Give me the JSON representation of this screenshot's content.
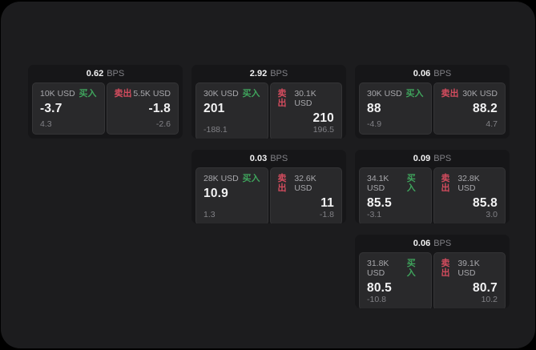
{
  "colors": {
    "page_bg": "#000000",
    "window_bg": "#1c1c1e",
    "card_bg": "#161618",
    "panel_bg": "#29292b",
    "panel_border": "#343436",
    "buy_green": "#3fa35c",
    "sell_red": "#d34c5e",
    "text_primary": "#f2f2f3",
    "text_secondary": "#a8a8ac",
    "text_muted": "#818186"
  },
  "labels": {
    "buy": "买入",
    "sell": "卖出",
    "bps_unit": "BPS"
  },
  "cards": [
    {
      "bps": "0.62",
      "row": 1,
      "col": 1,
      "buy": {
        "size": "10K USD",
        "price": "-3.7",
        "change": "4.3"
      },
      "sell": {
        "size": "5.5K USD",
        "price": "-1.8",
        "change": "-2.6"
      }
    },
    {
      "bps": "2.92",
      "row": 1,
      "col": 2,
      "buy": {
        "size": "30K USD",
        "price": "201",
        "change": "-188.1"
      },
      "sell": {
        "size": "30.1K USD",
        "price": "210",
        "change": "196.5"
      }
    },
    {
      "bps": "0.06",
      "row": 1,
      "col": 3,
      "buy": {
        "size": "30K USD",
        "price": "88",
        "change": "-4.9"
      },
      "sell": {
        "size": "30K USD",
        "price": "88.2",
        "change": "4.7"
      }
    },
    {
      "bps": "0.03",
      "row": 2,
      "col": 2,
      "buy": {
        "size": "28K USD",
        "price": "10.9",
        "change": "1.3"
      },
      "sell": {
        "size": "32.6K USD",
        "price": "11",
        "change": "-1.8"
      }
    },
    {
      "bps": "0.09",
      "row": 2,
      "col": 3,
      "buy": {
        "size": "34.1K USD",
        "price": "85.5",
        "change": "-3.1"
      },
      "sell": {
        "size": "32.8K USD",
        "price": "85.8",
        "change": "3.0"
      }
    },
    {
      "bps": "0.06",
      "row": 3,
      "col": 3,
      "buy": {
        "size": "31.8K USD",
        "price": "80.5",
        "change": "-10.8"
      },
      "sell": {
        "size": "39.1K USD",
        "price": "80.7",
        "change": "10.2"
      }
    }
  ]
}
